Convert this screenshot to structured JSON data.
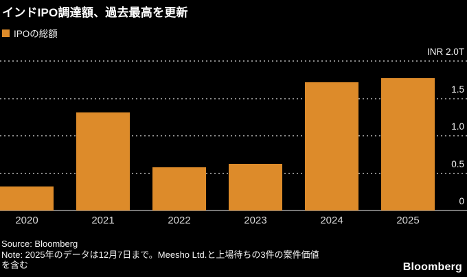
{
  "header": {
    "title": "インドIPO調達額、過去最高を更新",
    "legend": {
      "label": "IPOの総額",
      "swatch_color": "#DD8B2A"
    }
  },
  "chart_data": {
    "type": "bar",
    "title": "インドIPO調達額、過去最高を更新",
    "series_name": "IPOの総額",
    "categories": [
      "2020",
      "2021",
      "2022",
      "2023",
      "2024",
      "2025"
    ],
    "values": [
      0.32,
      1.31,
      0.58,
      0.62,
      1.72,
      1.77
    ],
    "unit": "INR T",
    "xlabel": "",
    "ylabel": "INR 2.0T",
    "ylim": [
      0,
      2.0
    ],
    "yticks": [
      {
        "value": 2.0,
        "label": "INR 2.0T"
      },
      {
        "value": 1.5,
        "label": "1.5"
      },
      {
        "value": 1.0,
        "label": "1.0"
      },
      {
        "value": 0.5,
        "label": "0.5"
      },
      {
        "value": 0.0,
        "label": "0"
      }
    ],
    "grid": "horizontal-dotted",
    "legend_position": "top-left",
    "bar_color": "#DD8B2A",
    "background_color": "#000000"
  },
  "footer": {
    "source": "Source: Bloomberg",
    "note_line1": "Note: 2025年のデータは12月7日まで。Meesho Ltd.と上場待ちの3件の案件価値",
    "note_line2": "を含む",
    "logo": "Bloomberg"
  }
}
